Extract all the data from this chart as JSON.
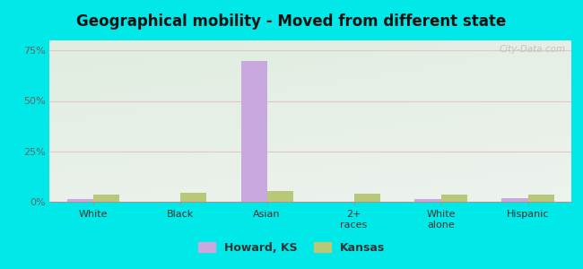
{
  "title": "Geographical mobility - Moved from different state",
  "categories": [
    "White",
    "Black",
    "Asian",
    "2+\nraces",
    "White\nalone",
    "Hispanic"
  ],
  "howard_ks": [
    1.2,
    0.0,
    70.0,
    0.0,
    1.2,
    2.0
  ],
  "kansas": [
    3.5,
    4.5,
    5.5,
    4.0,
    3.5,
    3.5
  ],
  "howard_color": "#c9a8e0",
  "kansas_color": "#b8c878",
  "ylim": [
    0,
    80
  ],
  "yticks": [
    0,
    25,
    50,
    75
  ],
  "ytick_labels": [
    "0%",
    "25%",
    "50%",
    "75%"
  ],
  "bar_width": 0.3,
  "outer_background": "#00e8e8",
  "title_fontsize": 12,
  "legend_labels": [
    "Howard, KS",
    "Kansas"
  ],
  "watermark": "City-Data.com"
}
